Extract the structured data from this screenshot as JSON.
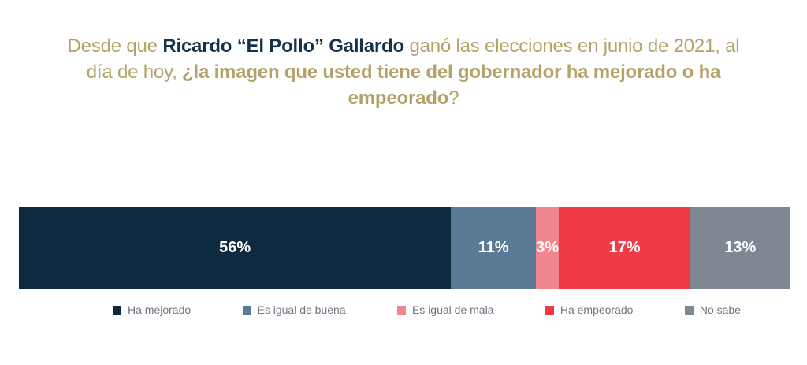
{
  "title": {
    "part1": "Desde que ",
    "part2": "Ricardo “El Pollo” Gallardo",
    "part3": " ganó las elecciones en junio de 2021, al día de hoy, ",
    "part4": "¿la imagen que usted tiene del gobernador ha mejorado o ha empeorado",
    "part5": "?"
  },
  "chart_data": {
    "type": "bar",
    "orientation": "horizontal",
    "stacked": true,
    "title": "Desde que Ricardo “El Pollo” Gallardo ganó las elecciones en junio de 2021, al día de hoy, ¿la imagen que usted tiene del gobernador ha mejorado o ha empeorado?",
    "unit": "%",
    "categories": [
      "Ha mejorado",
      "Es igual de buena",
      "Es igual de mala",
      "Ha empeorado",
      "No sabe"
    ],
    "values": [
      56,
      11,
      3,
      17,
      13
    ],
    "labels": [
      "56%",
      "11%",
      "3%",
      "17%",
      "13%"
    ],
    "colors": [
      "#0e2a3e",
      "#5b7a95",
      "#f0868e",
      "#ee3b45",
      "#7e8792"
    ],
    "value_label_color": "#ffffff",
    "legend_position": "bottom",
    "axes": "none",
    "xlim": [
      0,
      100
    ]
  },
  "colors": {
    "background": "#ffffff",
    "title_gold": "#b3a269",
    "title_navy": "#16324b",
    "legend_text": "#6e7780"
  }
}
